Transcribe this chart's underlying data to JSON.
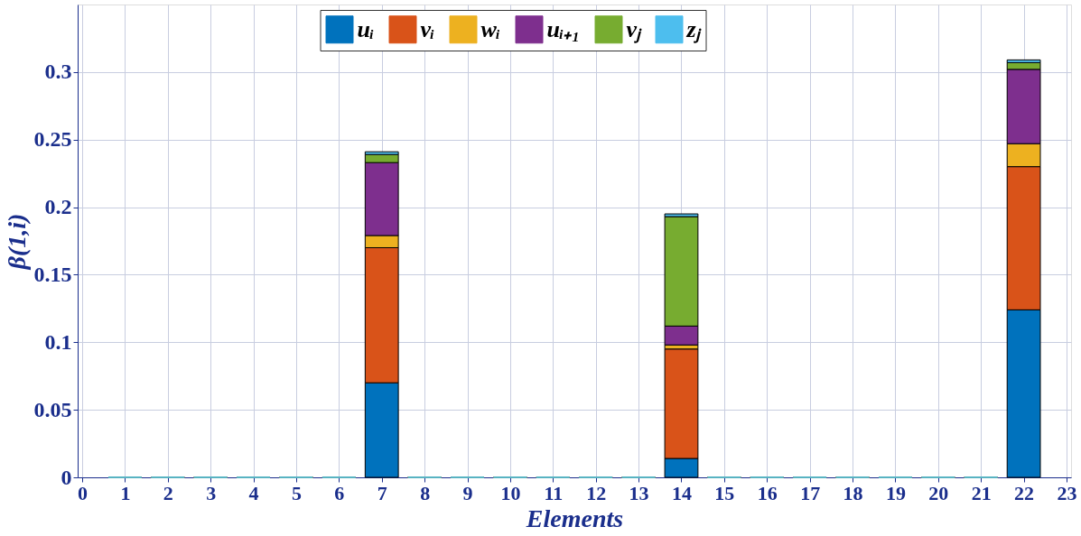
{
  "chart_data": {
    "type": "bar",
    "stacked": true,
    "xlabel": "Elements",
    "ylabel": "β(1,i)",
    "x": [
      1,
      2,
      3,
      4,
      5,
      6,
      7,
      8,
      9,
      10,
      11,
      12,
      13,
      14,
      15,
      16,
      17,
      18,
      19,
      20,
      21,
      22
    ],
    "xlim": [
      0,
      23
    ],
    "xticks": [
      0,
      1,
      2,
      3,
      4,
      5,
      6,
      7,
      8,
      9,
      10,
      11,
      12,
      13,
      14,
      15,
      16,
      17,
      18,
      19,
      20,
      21,
      22,
      23
    ],
    "ylim": [
      0,
      0.35
    ],
    "yticks": [
      0,
      0.05,
      0.1,
      0.15,
      0.2,
      0.25,
      0.3
    ],
    "grid": true,
    "legend": "top",
    "series": [
      {
        "name": "uᵢ",
        "color": "#0072bd",
        "values": [
          0,
          0,
          0,
          0,
          0,
          0,
          0.07,
          0,
          0,
          0,
          0,
          0,
          0,
          0.014,
          0,
          0,
          0,
          0,
          0,
          0,
          0,
          0.124
        ]
      },
      {
        "name": "vᵢ",
        "color": "#d95319",
        "values": [
          0,
          0,
          0,
          0,
          0,
          0,
          0.1,
          0,
          0,
          0,
          0,
          0,
          0,
          0.081,
          0,
          0,
          0,
          0,
          0,
          0,
          0,
          0.106
        ]
      },
      {
        "name": "wᵢ",
        "color": "#edb120",
        "values": [
          0,
          0,
          0,
          0,
          0,
          0,
          0.009,
          0,
          0,
          0,
          0,
          0,
          0,
          0.003,
          0,
          0,
          0,
          0,
          0,
          0,
          0,
          0.017
        ]
      },
      {
        "name": "uᵢ₊₁",
        "color": "#7e2f8e",
        "values": [
          0,
          0,
          0,
          0,
          0,
          0,
          0.054,
          0,
          0,
          0,
          0,
          0,
          0,
          0.014,
          0,
          0,
          0,
          0,
          0,
          0,
          0,
          0.055
        ]
      },
      {
        "name": "vⱼ",
        "color": "#77ac30",
        "values": [
          0,
          0,
          0,
          0,
          0,
          0,
          0.006,
          0,
          0,
          0,
          0,
          0,
          0,
          0.081,
          0,
          0,
          0,
          0,
          0,
          0,
          0,
          0.005
        ]
      },
      {
        "name": "zⱼ",
        "color": "#4dbeee",
        "values": [
          0,
          0,
          0,
          0,
          0,
          0,
          0.002,
          0,
          0,
          0,
          0,
          0,
          0,
          0.002,
          0,
          0,
          0,
          0,
          0,
          0,
          0,
          0.002
        ]
      }
    ]
  }
}
